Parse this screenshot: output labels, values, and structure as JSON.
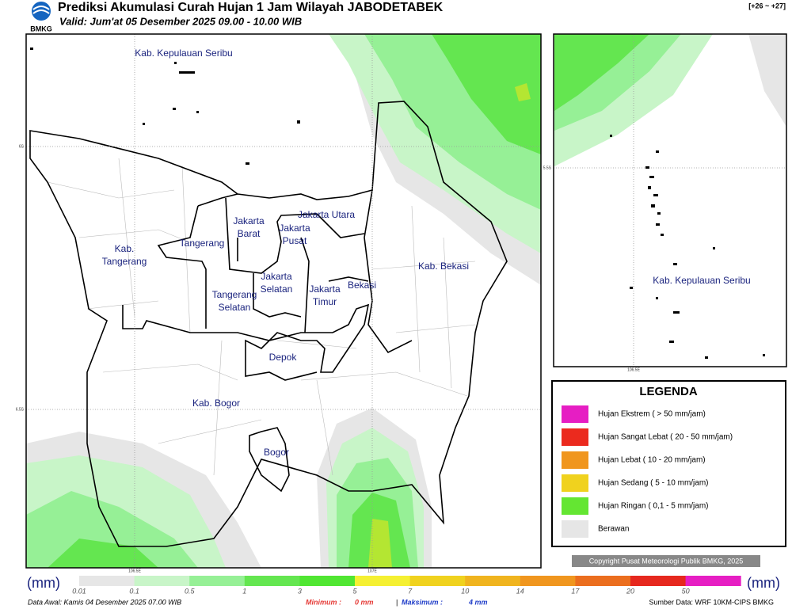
{
  "header": {
    "logo": "BMKG",
    "title": "Prediksi Akumulasi Curah Hujan 1 Jam Wilayah JABODETABEK",
    "subtitle": "Valid: Jum'at 05 Desember 2025 09.00 - 10.00 WIB",
    "range": "[+26 ~ +27]"
  },
  "main_map": {
    "ticks": [
      "6S",
      "6.5S",
      "106.5E",
      "107E"
    ],
    "regions": [
      [
        "Kab. Kepulauan Seribu"
      ],
      [
        "Jakarta Utara"
      ],
      [
        "Jakarta",
        "Barat"
      ],
      [
        "Jakarta",
        "Pusat"
      ],
      [
        "Tangerang"
      ],
      [
        "Kab.",
        "Tangerang"
      ],
      [
        "Jakarta",
        "Selatan"
      ],
      [
        "Jakarta",
        "Timur"
      ],
      [
        "Bekasi"
      ],
      [
        "Kab. Bekasi"
      ],
      [
        "Tangerang",
        "Selatan"
      ],
      [
        "Depok"
      ],
      [
        "Kab. Bogor"
      ],
      [
        "Bogor"
      ]
    ]
  },
  "inset_map": {
    "ticks": [
      "5.5S",
      "106.5E"
    ],
    "label": "Kab. Kepulauan Seribu"
  },
  "legend": {
    "title": "LEGENDA",
    "items": [
      {
        "label": "Hujan Ekstrem ( > 50 mm/jam)",
        "color": "#e61ec3"
      },
      {
        "label": "Hujan Sangat Lebat ( 20 - 50 mm/jam)",
        "color": "#eb2a1e"
      },
      {
        "label": "Hujan Lebat ( 10 - 20 mm/jam)",
        "color": "#f0961e"
      },
      {
        "label": "Hujan Sedang ( 5 - 10 mm/jam)",
        "color": "#f0d21e"
      },
      {
        "label": "Hujan Ringan ( 0,1 - 5 mm/jam)",
        "color": "#64e632"
      },
      {
        "label": "Berawan",
        "color": "#e6e6e6"
      }
    ]
  },
  "copyright": "Copyright Pusat Meteorologi Publik BMKG, 2025",
  "colorbar": {
    "unit": "(mm)",
    "ticks": [
      0.01,
      0.1,
      0.5,
      1,
      3,
      5,
      7,
      10,
      14,
      17,
      20,
      50
    ],
    "colors": [
      "#e6e6e6",
      "#c8f5c8",
      "#96f096",
      "#64e650",
      "#50e632",
      "#f5f032",
      "#f0d21e",
      "#f0b41e",
      "#f0961e",
      "#eb6e1e",
      "#e6281e",
      "#e61ec3"
    ]
  },
  "footer": {
    "data_awal": "Data Awal: Kamis 04 Desember 2025 07.00 WIB",
    "min_label": "Minimum :",
    "min_value": "0 mm",
    "separator": "|",
    "max_label": "Maksimum :",
    "max_value": "4 mm",
    "source": "Sumber Data: WRF 10KM-CIPS BMKG"
  }
}
